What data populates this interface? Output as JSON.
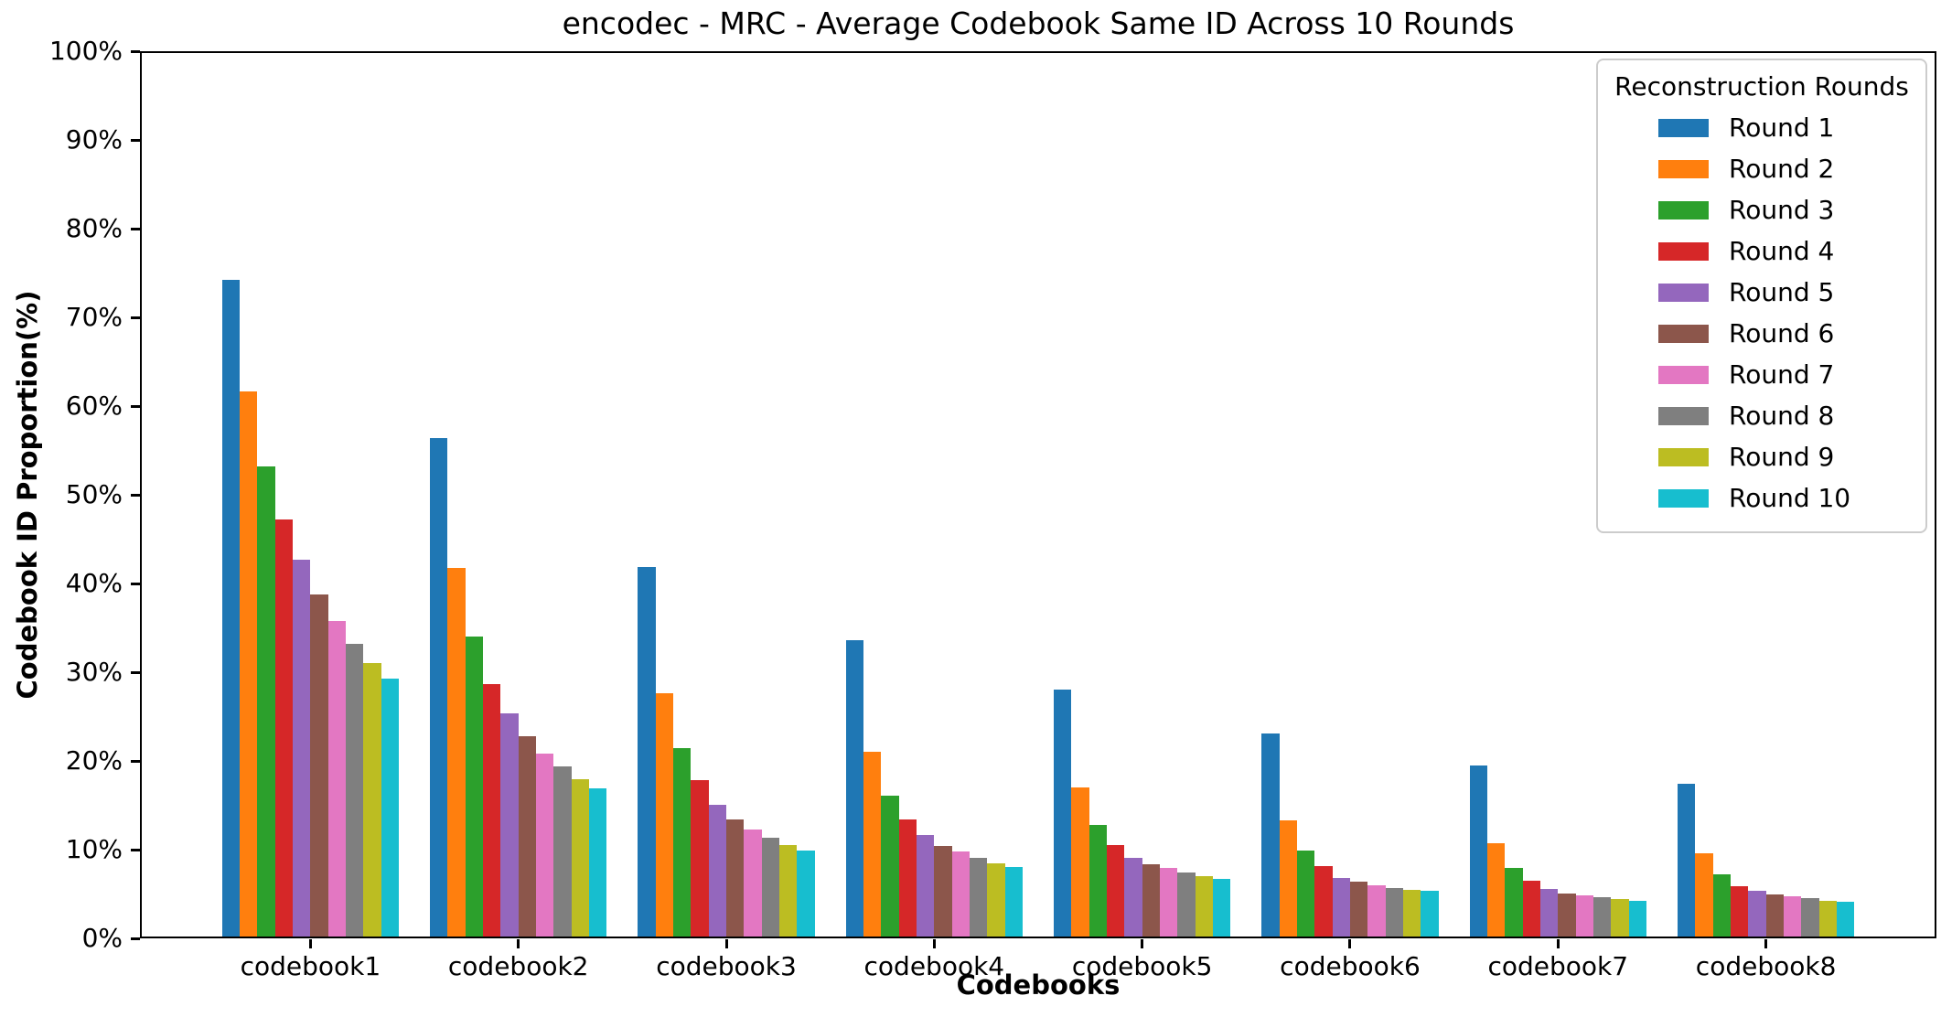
{
  "figure": {
    "background": "#ffffff",
    "text_color": "#000000"
  },
  "chart_data": {
    "type": "bar",
    "title": "encodec - MRC - Average Codebook Same ID Across 10 Rounds",
    "xlabel": "Codebooks",
    "ylabel": "Codebook ID Proportion(%)",
    "legend_title": "Reconstruction Rounds",
    "legend_position": "upper right",
    "grid": false,
    "ylim": [
      0,
      100
    ],
    "yticks": [
      "0%",
      "10%",
      "20%",
      "30%",
      "40%",
      "50%",
      "60%",
      "70%",
      "80%",
      "90%",
      "100%"
    ],
    "categories": [
      "codebook1",
      "codebook2",
      "codebook3",
      "codebook4",
      "codebook5",
      "codebook6",
      "codebook7",
      "codebook8"
    ],
    "series": [
      {
        "name": "Round 1",
        "color": "#1f77b4",
        "values": [
          74.2,
          56.4,
          41.9,
          33.6,
          28.0,
          23.1,
          19.5,
          17.4
        ]
      },
      {
        "name": "Round 2",
        "color": "#ff7f0e",
        "values": [
          61.6,
          41.8,
          27.6,
          21.0,
          17.0,
          13.3,
          10.7,
          9.6
        ]
      },
      {
        "name": "Round 3",
        "color": "#2ca02c",
        "values": [
          53.2,
          34.0,
          21.4,
          16.1,
          12.8,
          9.9,
          7.9,
          7.2
        ]
      },
      {
        "name": "Round 4",
        "color": "#d62728",
        "values": [
          47.2,
          28.7,
          17.8,
          13.4,
          10.5,
          8.1,
          6.5,
          5.9
        ]
      },
      {
        "name": "Round 5",
        "color": "#9467bd",
        "values": [
          42.7,
          25.4,
          15.1,
          11.6,
          9.1,
          6.8,
          5.6,
          5.4
        ]
      },
      {
        "name": "Round 6",
        "color": "#8c564b",
        "values": [
          38.8,
          22.8,
          13.4,
          10.4,
          8.4,
          6.4,
          5.1,
          4.9
        ]
      },
      {
        "name": "Round 7",
        "color": "#e377c2",
        "values": [
          35.8,
          20.8,
          12.3,
          9.8,
          7.9,
          6.0,
          4.8,
          4.7
        ]
      },
      {
        "name": "Round 8",
        "color": "#7f7f7f",
        "values": [
          33.2,
          19.4,
          11.3,
          9.1,
          7.4,
          5.7,
          4.6,
          4.5
        ]
      },
      {
        "name": "Round 9",
        "color": "#bcbd22",
        "values": [
          31.0,
          17.9,
          10.5,
          8.5,
          7.0,
          5.5,
          4.4,
          4.2
        ]
      },
      {
        "name": "Round 10",
        "color": "#17becf",
        "values": [
          29.3,
          16.9,
          9.9,
          8.0,
          6.7,
          5.4,
          4.2,
          4.1
        ]
      }
    ]
  }
}
